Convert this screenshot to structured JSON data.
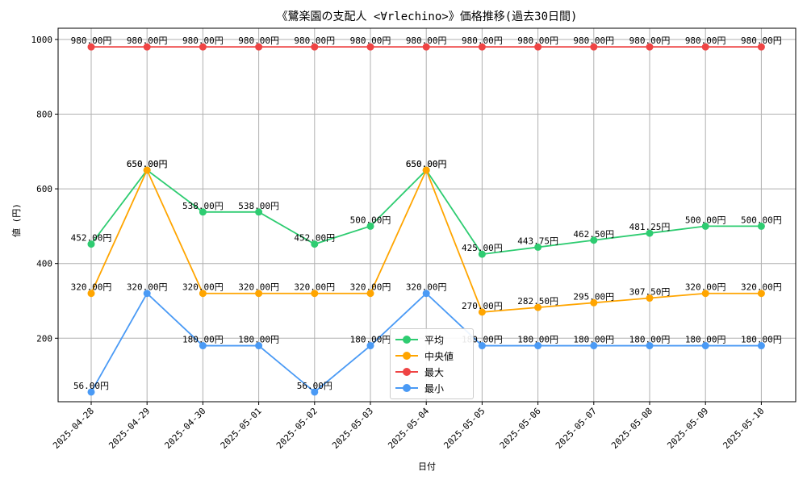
{
  "chart_data": {
    "type": "line",
    "title": "《鷺楽園の支配人 <∀rlechino>》価格推移(過去30日間)",
    "xlabel": "日付",
    "ylabel": "値 (円)",
    "ylim": [
      30,
      1030
    ],
    "yticks": [
      200,
      400,
      600,
      800,
      1000
    ],
    "grid": true,
    "legend_position": "lower-center",
    "categories": [
      "2025-04-28",
      "2025-04-29",
      "2025-04-30",
      "2025-05-01",
      "2025-05-02",
      "2025-05-03",
      "2025-05-04",
      "2025-05-05",
      "2025-05-06",
      "2025-05-07",
      "2025-05-08",
      "2025-05-09",
      "2025-05-10"
    ],
    "series": [
      {
        "name": "平均",
        "color": "#2ecc71",
        "values": [
          452,
          650,
          538,
          538,
          452,
          500,
          650,
          425,
          443.75,
          462.5,
          481.25,
          500,
          500
        ],
        "labels": [
          "452.00円",
          "650.00円",
          "538.00円",
          "538.00円",
          "452.00円",
          "500.00円",
          "650.00円",
          "425.00円",
          "443.75円",
          "462.50円",
          "481.25円",
          "500.00円",
          "500.00円"
        ]
      },
      {
        "name": "中央値",
        "color": "#ffa500",
        "values": [
          320,
          650,
          320,
          320,
          320,
          320,
          650,
          270,
          282.5,
          295,
          307.5,
          320,
          320
        ],
        "labels": [
          "320.00円",
          "650.00円",
          "320.00円",
          "320.00円",
          "320.00円",
          "320.00円",
          "650.00円",
          "270.00円",
          "282.50円",
          "295.00円",
          "307.50円",
          "320.00円",
          "320.00円"
        ]
      },
      {
        "name": "最大",
        "color": "#ef4444",
        "values": [
          980,
          980,
          980,
          980,
          980,
          980,
          980,
          980,
          980,
          980,
          980,
          980,
          980
        ],
        "labels": [
          "980.00円",
          "980.00円",
          "980.00円",
          "980.00円",
          "980.00円",
          "980.00円",
          "980.00円",
          "980.00円",
          "980.00円",
          "980.00円",
          "980.00円",
          "980.00円",
          "980.00円"
        ]
      },
      {
        "name": "最小",
        "color": "#4a9af5",
        "values": [
          56,
          320,
          180,
          180,
          56,
          180,
          320,
          180,
          180,
          180,
          180,
          180,
          180
        ],
        "labels": [
          "56.00円",
          "320.00円",
          "180.00円",
          "180.00円",
          "56.00円",
          "180.00円",
          "320.00円",
          "180.00円",
          "180.00円",
          "180.00円",
          "180.00円",
          "180.00円",
          "180.00円"
        ]
      }
    ]
  }
}
